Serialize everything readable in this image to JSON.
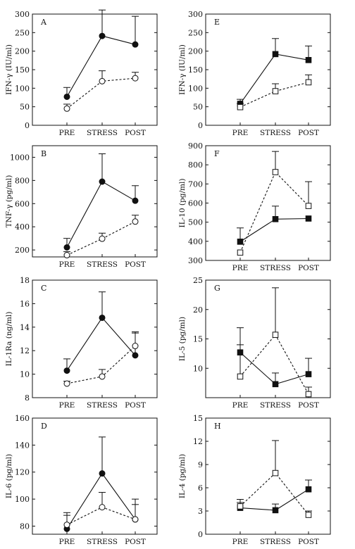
{
  "chart_data": [
    {
      "type": "line",
      "panel": "A",
      "ylabel": "IFN-γ (IU/ml)",
      "categories": [
        "PRE",
        "STRESS",
        "POST"
      ],
      "ylim": [
        0,
        300
      ],
      "yticks": [
        0,
        50,
        100,
        150,
        200,
        250,
        300
      ],
      "series": [
        {
          "marker": "filled-circle",
          "linestyle": "solid",
          "values": [
            77,
            241,
            218
          ],
          "errors": [
            25,
            70,
            76
          ]
        },
        {
          "marker": "open-circle",
          "linestyle": "dashed",
          "values": [
            45,
            119,
            127
          ],
          "errors": [
            12,
            28,
            16
          ]
        }
      ]
    },
    {
      "type": "line",
      "panel": "B",
      "ylabel": "TNF-γ (pg/ml)",
      "categories": [
        "PRE",
        "STRESS",
        "POST"
      ],
      "ylim": [
        140,
        1100
      ],
      "yticks": [
        200,
        400,
        600,
        800,
        1000
      ],
      "series": [
        {
          "marker": "filled-circle",
          "linestyle": "solid",
          "values": [
            222,
            790,
            625
          ],
          "errors": [
            78,
            240,
            130
          ]
        },
        {
          "marker": "open-circle",
          "linestyle": "dashed",
          "values": [
            155,
            297,
            445
          ],
          "errors": [
            30,
            48,
            55
          ]
        }
      ]
    },
    {
      "type": "line",
      "panel": "C",
      "ylabel": "IL-1Ra (ng/ml)",
      "categories": [
        "PRE",
        "STRESS",
        "POST"
      ],
      "ylim": [
        8,
        18
      ],
      "yticks": [
        8,
        10,
        12,
        14,
        16,
        18
      ],
      "series": [
        {
          "marker": "filled-circle",
          "linestyle": "solid",
          "values": [
            10.3,
            14.8,
            11.6
          ],
          "errors": [
            1.0,
            2.2,
            1.9
          ]
        },
        {
          "marker": "open-circle",
          "linestyle": "dashed",
          "values": [
            9.2,
            9.8,
            12.4
          ],
          "errors": [
            0.2,
            0.6,
            1.2
          ]
        }
      ]
    },
    {
      "type": "line",
      "panel": "D",
      "ylabel": "IL-6 (pg/ml)",
      "categories": [
        "PRE",
        "STRESS",
        "POST"
      ],
      "ylim": [
        74,
        160
      ],
      "yticks": [
        80,
        100,
        120,
        140,
        160
      ],
      "series": [
        {
          "marker": "filled-circle",
          "linestyle": "solid",
          "values": [
            78,
            119,
            85
          ],
          "errors": [
            12,
            27,
            15
          ]
        },
        {
          "marker": "open-circle",
          "linestyle": "dashed",
          "values": [
            81,
            94,
            85
          ],
          "errors": [
            7,
            11,
            11
          ]
        }
      ]
    },
    {
      "type": "line",
      "panel": "E",
      "ylabel": "IFN-γ (IU/ml)",
      "categories": [
        "PRE",
        "STRESS",
        "POST"
      ],
      "ylim": [
        0,
        300
      ],
      "yticks": [
        0,
        50,
        100,
        150,
        200,
        250,
        300
      ],
      "series": [
        {
          "marker": "filled-square",
          "linestyle": "solid",
          "values": [
            58,
            192,
            176
          ],
          "errors": [
            12,
            42,
            38
          ]
        },
        {
          "marker": "open-square",
          "linestyle": "dashed",
          "values": [
            49,
            92,
            116
          ],
          "errors": [
            10,
            20,
            20
          ]
        }
      ]
    },
    {
      "type": "line",
      "panel": "F",
      "ylabel": "IL-10 (pg/ml)",
      "categories": [
        "PRE",
        "STRESS",
        "POST"
      ],
      "ylim": [
        300,
        900
      ],
      "yticks": [
        300,
        400,
        500,
        600,
        700,
        800,
        900
      ],
      "series": [
        {
          "marker": "filled-square",
          "linestyle": "solid",
          "values": [
            398,
            516,
            519
          ],
          "errors": [
            72,
            68,
            0
          ]
        },
        {
          "marker": "open-square",
          "linestyle": "dashed",
          "values": [
            341,
            762,
            585
          ],
          "errors": [
            0,
            108,
            127
          ]
        }
      ]
    },
    {
      "type": "line",
      "panel": "G",
      "ylabel": "IL-5 (pg/ml)",
      "categories": [
        "PRE",
        "STRESS",
        "POST"
      ],
      "ylim": [
        5,
        25
      ],
      "yticks": [
        10,
        15,
        20,
        25
      ],
      "series": [
        {
          "marker": "filled-square",
          "linestyle": "solid",
          "values": [
            12.7,
            7.3,
            9.0
          ],
          "errors": [
            4.2,
            1.9,
            2.7
          ]
        },
        {
          "marker": "open-square",
          "linestyle": "dashed",
          "values": [
            8.6,
            15.7,
            5.6
          ],
          "errors": [
            5.4,
            8.0,
            1.2
          ]
        }
      ]
    },
    {
      "type": "line",
      "panel": "H",
      "ylabel": "IL-4 (pg/ml)",
      "categories": [
        "PRE",
        "STRESS",
        "POST"
      ],
      "ylim": [
        0,
        15
      ],
      "yticks": [
        0,
        3,
        6,
        9,
        12,
        15
      ],
      "series": [
        {
          "marker": "filled-square",
          "linestyle": "solid",
          "values": [
            3.4,
            3.1,
            5.8
          ],
          "errors": [
            0.7,
            0.8,
            1.2
          ]
        },
        {
          "marker": "open-square",
          "linestyle": "dashed",
          "values": [
            3.6,
            7.9,
            2.5
          ],
          "errors": [
            0.9,
            4.2,
            0.5
          ]
        }
      ]
    }
  ]
}
